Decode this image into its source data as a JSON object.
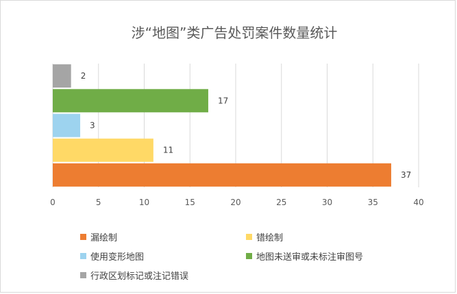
{
  "chart_data": {
    "type": "bar",
    "orientation": "horizontal",
    "title": "涉“地图”类广告处罚案件数量统计",
    "xlabel": "",
    "ylabel": "",
    "xlim": [
      0,
      40
    ],
    "x_ticks": [
      0,
      5,
      10,
      15,
      20,
      25,
      30,
      35,
      40
    ],
    "grid": "vertical",
    "legend_position": "bottom",
    "series": [
      {
        "name": "漏绘制",
        "value": 37,
        "label": "37",
        "color": "#ed7d31"
      },
      {
        "name": "错绘制",
        "value": 11,
        "label": "11",
        "color": "#ffd966"
      },
      {
        "name": "使用变形地图",
        "value": 3,
        "label": "3",
        "color": "#9dd3ef"
      },
      {
        "name": "地图未送审或未标注审图号",
        "value": 17,
        "label": "17",
        "color": "#70ad47"
      },
      {
        "name": "行政区划标记或注记错误",
        "value": 2,
        "label": "2",
        "color": "#a5a5a5"
      }
    ]
  }
}
